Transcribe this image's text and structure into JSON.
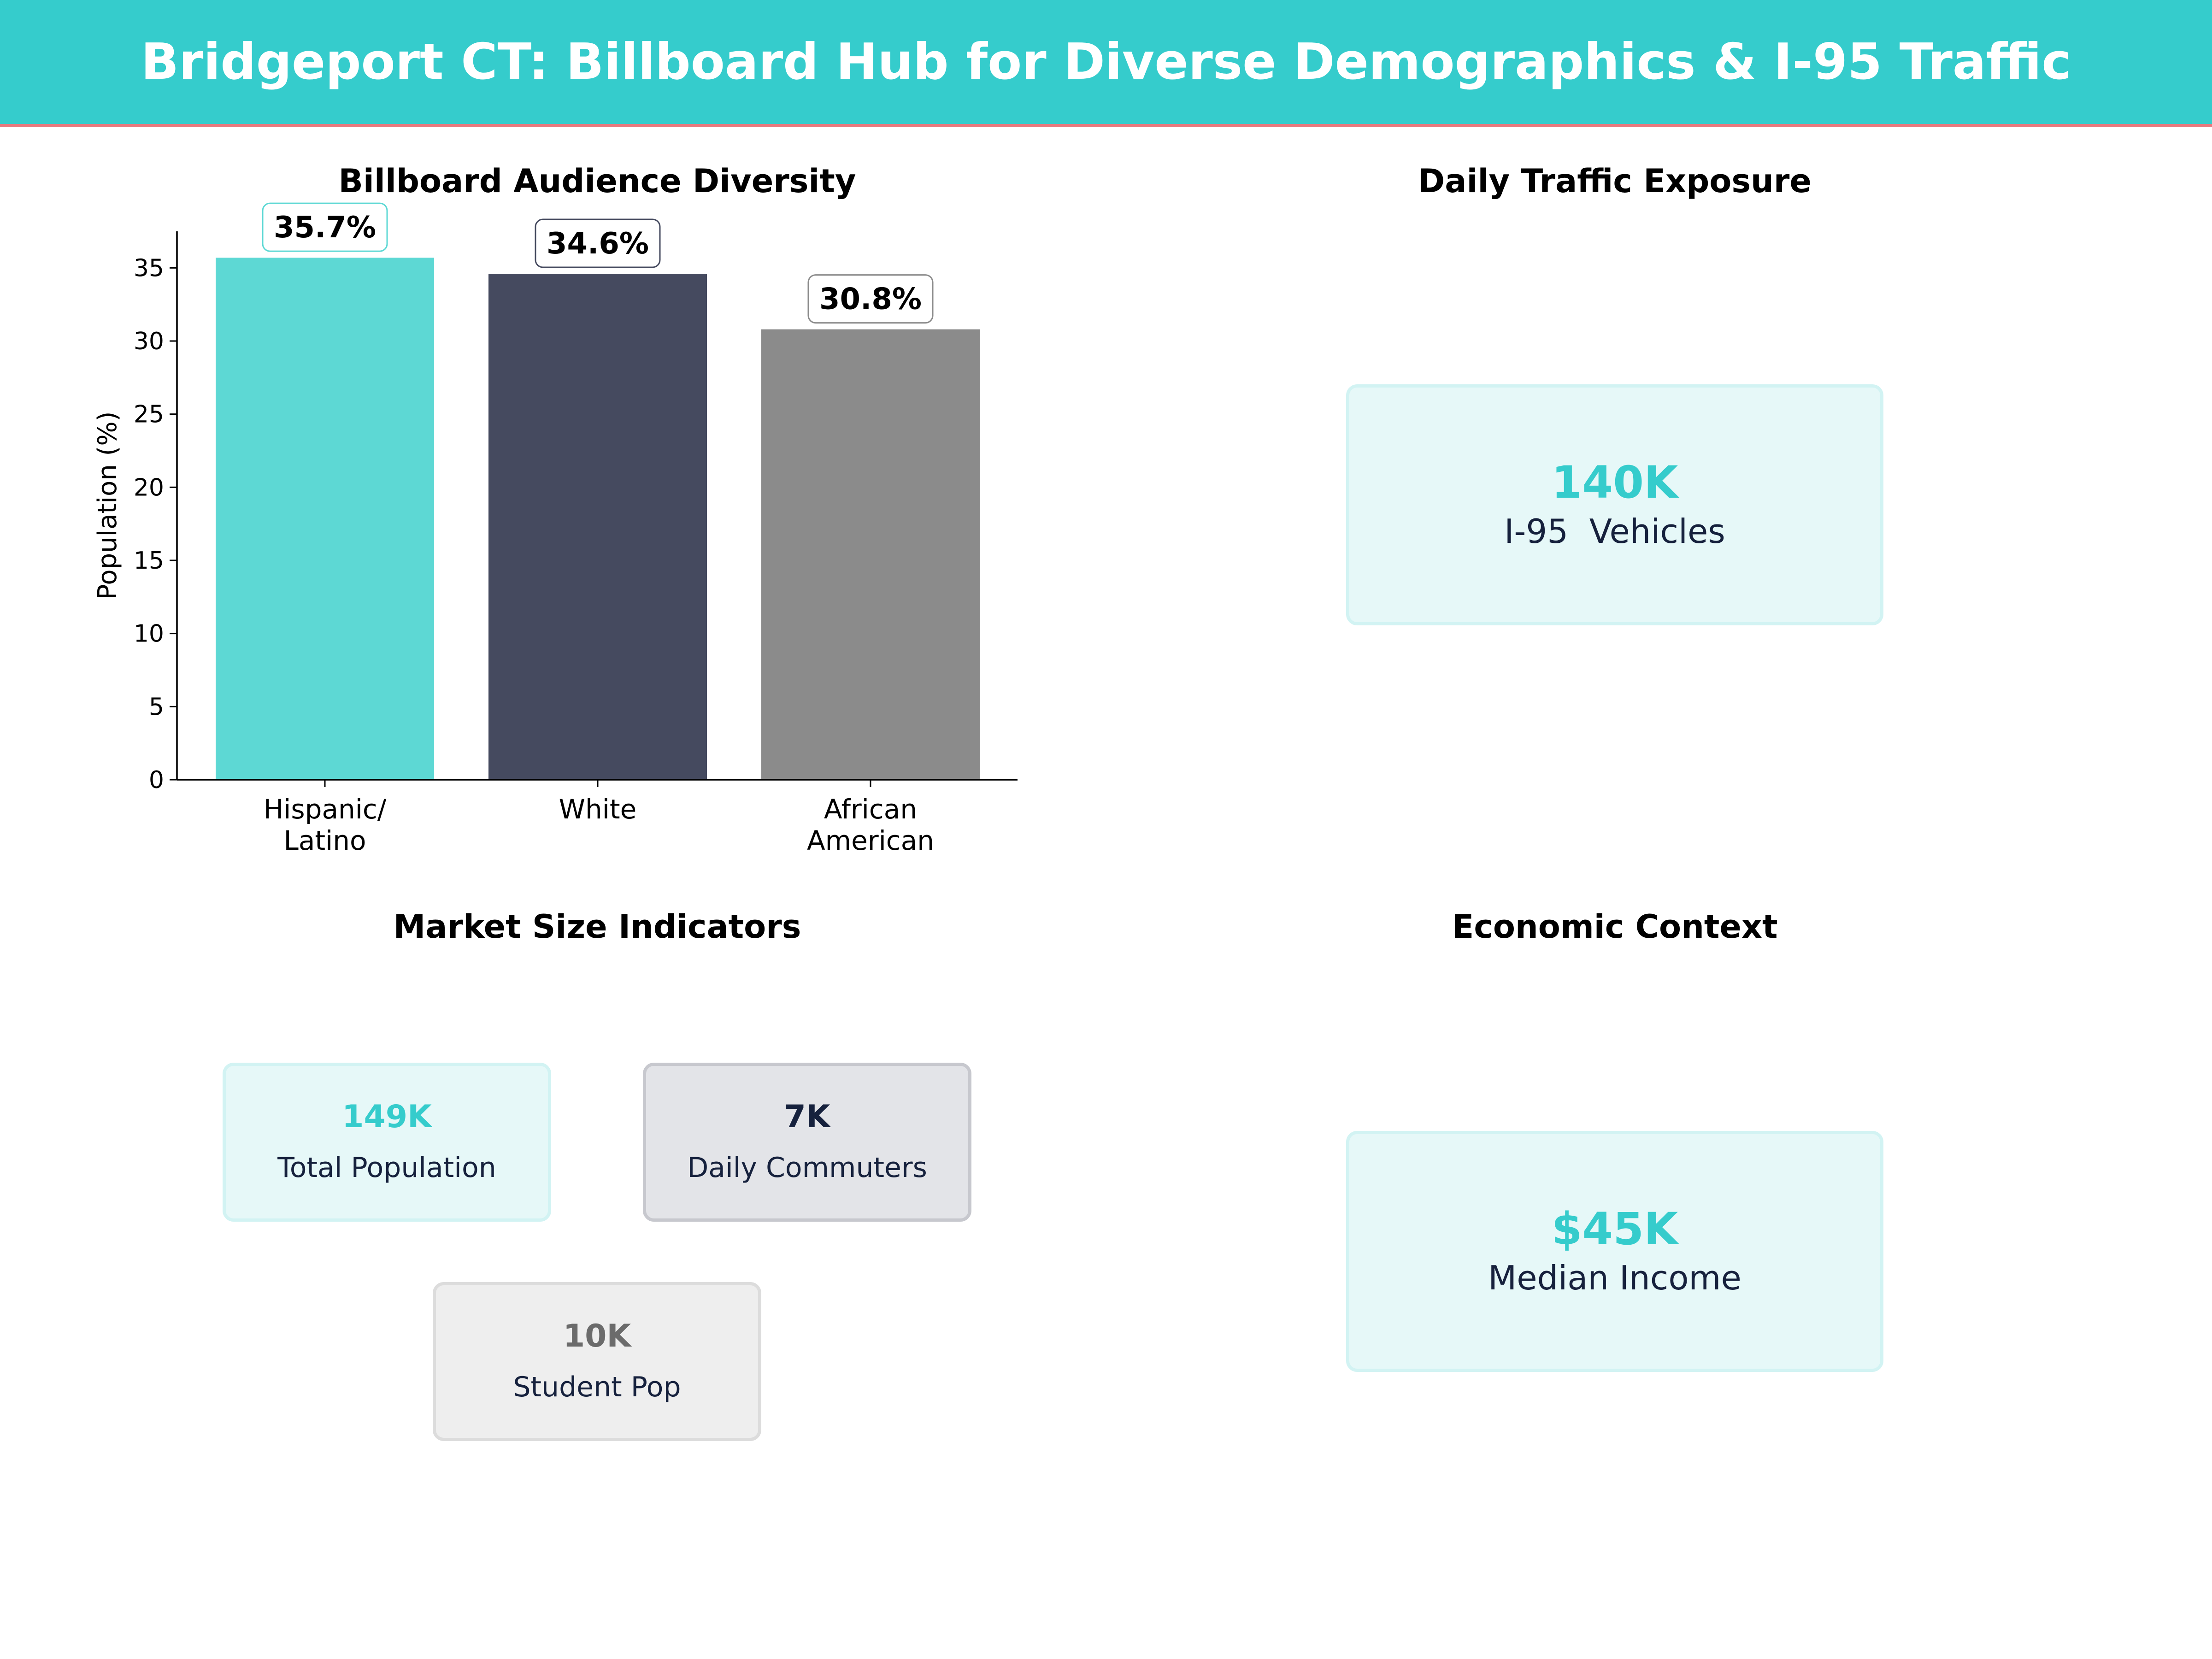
{
  "header": {
    "title": "Bridgeport CT: Billboard Hub for Diverse Demographics & I-95 Traffic"
  },
  "colors": {
    "teal": "#35CCCC",
    "teal_bar": "#5DD8D4",
    "navy": "#454A5F",
    "gray": "#8B8B8B",
    "accent_line": "#E8797E",
    "dark_text": "#16213D"
  },
  "chart_data": {
    "type": "bar",
    "title": "Billboard Audience Diversity",
    "ylabel": "Population (%)",
    "xlabel": "",
    "categories": [
      "Hispanic/\nLatino",
      "White",
      "African\nAmerican"
    ],
    "values": [
      35.7,
      34.6,
      30.8
    ],
    "data_labels": [
      "35.7%",
      "34.6%",
      "30.8%"
    ],
    "bar_colors": [
      "#5DD8D4",
      "#454A5F",
      "#8B8B8B"
    ],
    "yticks": [
      0,
      5,
      10,
      15,
      20,
      25,
      30,
      35
    ],
    "ylim": [
      0,
      37.5
    ],
    "grid": false,
    "legend": "none"
  },
  "traffic": {
    "title": "Daily Traffic Exposure",
    "value": "140K",
    "label": "I-95  Vehicles"
  },
  "market": {
    "title": "Market Size Indicators",
    "cards": [
      {
        "value": "149K",
        "label": "Total Population"
      },
      {
        "value": "7K",
        "label": "Daily Commuters"
      },
      {
        "value": "10K",
        "label": "Student Pop"
      }
    ]
  },
  "economic": {
    "title": "Economic Context",
    "value": "$45K",
    "label": "Median Income"
  }
}
